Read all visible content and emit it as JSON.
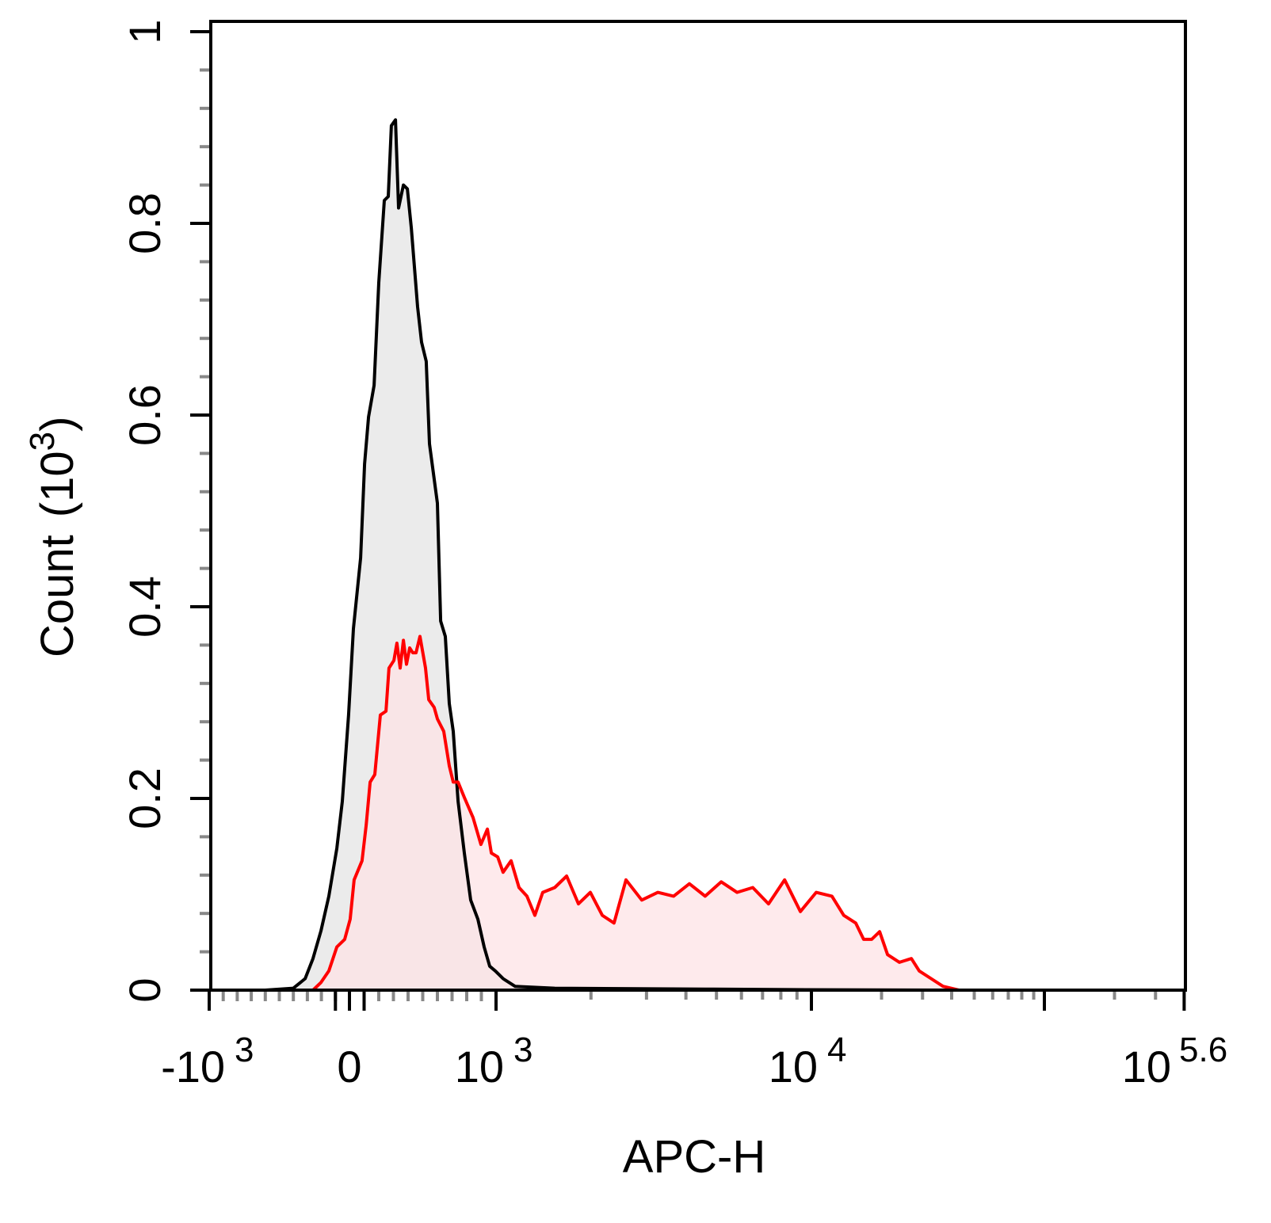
{
  "chart_data": {
    "type": "area",
    "title": "",
    "xlabel": "APC-H",
    "ylabel": "Count",
    "ylabel_unit_base": "10",
    "ylabel_unit_exp": "3",
    "x_scale": "biexponential",
    "xlim": [
      -1000,
      398107
    ],
    "ylim": [
      0,
      1
    ],
    "x_ticks": [
      {
        "value": -1000,
        "base": "-10",
        "exp": "3"
      },
      {
        "value": 0,
        "base": "0",
        "exp": ""
      },
      {
        "value": 1000,
        "base": "10",
        "exp": "3"
      },
      {
        "value": 10000,
        "base": "10",
        "exp": "4"
      },
      {
        "value": 398107,
        "base": "10",
        "exp": "5.6"
      }
    ],
    "y_ticks": [
      {
        "value": 0,
        "label": "0"
      },
      {
        "value": 0.2,
        "label": "0.2"
      },
      {
        "value": 0.4,
        "label": "0.4"
      },
      {
        "value": 0.6,
        "label": "0.6"
      },
      {
        "value": 0.8,
        "label": "0.8"
      },
      {
        "value": 1,
        "label": "1"
      }
    ],
    "grid": false,
    "series": [
      {
        "stroke": "#000000",
        "fill": "#ebebeb",
        "points": [
          [
            -600,
            0
          ],
          [
            -400,
            0.002
          ],
          [
            -316,
            0.012
          ],
          [
            -260,
            0.033
          ],
          [
            -203,
            0.062
          ],
          [
            -147,
            0.098
          ],
          [
            -90,
            0.148
          ],
          [
            -51,
            0.197
          ],
          [
            -6,
            0.287
          ],
          [
            27,
            0.377
          ],
          [
            76,
            0.451
          ],
          [
            103,
            0.549
          ],
          [
            130,
            0.598
          ],
          [
            168,
            0.631
          ],
          [
            200,
            0.738
          ],
          [
            238,
            0.824
          ],
          [
            265,
            0.828
          ],
          [
            286,
            0.902
          ],
          [
            314,
            0.908
          ],
          [
            335,
            0.816
          ],
          [
            368,
            0.84
          ],
          [
            395,
            0.836
          ],
          [
            422,
            0.795
          ],
          [
            465,
            0.713
          ],
          [
            492,
            0.676
          ],
          [
            524,
            0.656
          ],
          [
            546,
            0.57
          ],
          [
            600,
            0.508
          ],
          [
            622,
            0.385
          ],
          [
            654,
            0.369
          ],
          [
            681,
            0.299
          ],
          [
            708,
            0.27
          ],
          [
            741,
            0.197
          ],
          [
            784,
            0.143
          ],
          [
            827,
            0.094
          ],
          [
            876,
            0.074
          ],
          [
            919,
            0.045
          ],
          [
            957,
            0.025
          ],
          [
            995,
            0.02
          ],
          [
            1053,
            0.012
          ],
          [
            1149,
            0.004
          ],
          [
            1535,
            0.002
          ],
          [
            4875,
            0.001
          ],
          [
            8710,
            0.0005
          ],
          [
            39800,
            0
          ],
          [
            371000,
            0
          ]
        ]
      },
      {
        "stroke": "#ff0000",
        "fill": "#fde3e5",
        "points": [
          [
            -260,
            0
          ],
          [
            -203,
            0.008
          ],
          [
            -147,
            0.02
          ],
          [
            -90,
            0.045
          ],
          [
            -34,
            0.053
          ],
          [
            5,
            0.074
          ],
          [
            32,
            0.115
          ],
          [
            86,
            0.135
          ],
          [
            114,
            0.172
          ],
          [
            141,
            0.217
          ],
          [
            173,
            0.225
          ],
          [
            211,
            0.287
          ],
          [
            249,
            0.291
          ],
          [
            270,
            0.336
          ],
          [
            303,
            0.344
          ],
          [
            324,
            0.362
          ],
          [
            346,
            0.336
          ],
          [
            368,
            0.365
          ],
          [
            389,
            0.34
          ],
          [
            411,
            0.357
          ],
          [
            432,
            0.352
          ],
          [
            454,
            0.352
          ],
          [
            481,
            0.369
          ],
          [
            519,
            0.336
          ],
          [
            541,
            0.303
          ],
          [
            578,
            0.295
          ],
          [
            600,
            0.283
          ],
          [
            643,
            0.27
          ],
          [
            681,
            0.234
          ],
          [
            708,
            0.217
          ],
          [
            741,
            0.217
          ],
          [
            784,
            0.201
          ],
          [
            843,
            0.18
          ],
          [
            897,
            0.152
          ],
          [
            941,
            0.168
          ],
          [
            968,
            0.143
          ],
          [
            1012,
            0.139
          ],
          [
            1053,
            0.123
          ],
          [
            1116,
            0.135
          ],
          [
            1183,
            0.107
          ],
          [
            1253,
            0.098
          ],
          [
            1328,
            0.078
          ],
          [
            1406,
            0.102
          ],
          [
            1535,
            0.107
          ],
          [
            1674,
            0.119
          ],
          [
            1825,
            0.09
          ],
          [
            1991,
            0.102
          ],
          [
            2173,
            0.078
          ],
          [
            2366,
            0.07
          ],
          [
            2583,
            0.115
          ],
          [
            2897,
            0.094
          ],
          [
            3258,
            0.102
          ],
          [
            3656,
            0.098
          ],
          [
            4102,
            0.111
          ],
          [
            4603,
            0.098
          ],
          [
            5176,
            0.113
          ],
          [
            5808,
            0.102
          ],
          [
            6516,
            0.107
          ],
          [
            7311,
            0.09
          ],
          [
            8222,
            0.115
          ],
          [
            9226,
            0.082
          ],
          [
            10480,
            0.102
          ],
          [
            12250,
            0.098
          ],
          [
            13770,
            0.078
          ],
          [
            15490,
            0.07
          ],
          [
            16750,
            0.053
          ],
          [
            18140,
            0.053
          ],
          [
            19630,
            0.061
          ],
          [
            21230,
            0.037
          ],
          [
            23880,
            0.029
          ],
          [
            26850,
            0.033
          ],
          [
            29040,
            0.02
          ],
          [
            32660,
            0.012
          ],
          [
            36730,
            0.004
          ],
          [
            42950,
            0
          ],
          [
            371000,
            0
          ]
        ]
      }
    ]
  }
}
